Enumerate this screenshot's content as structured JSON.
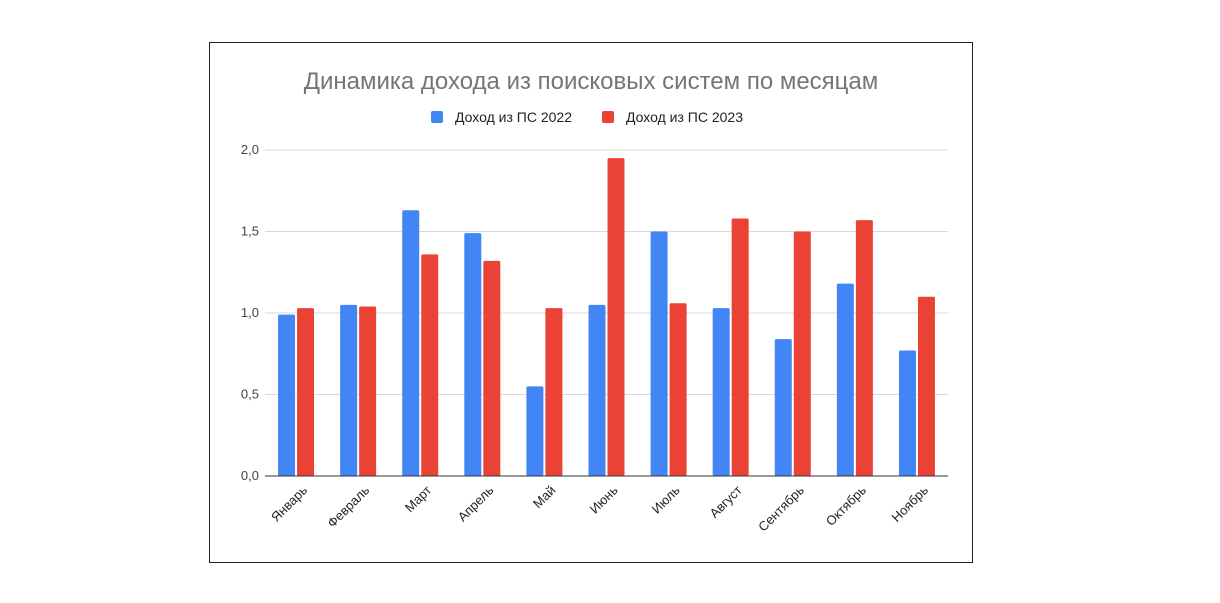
{
  "chart_data": {
    "type": "bar",
    "title": "Динамика дохода из поисковых систем по месяцам",
    "categories": [
      "Январь",
      "Февраль",
      "Март",
      "Апрель",
      "Май",
      "Июнь",
      "Июль",
      "Август",
      "Сентябрь",
      "Октябрь",
      "Ноябрь"
    ],
    "series": [
      {
        "name": "Доход из ПС 2022",
        "color": "#4285f4",
        "values": [
          0.99,
          1.05,
          1.63,
          1.49,
          0.55,
          1.05,
          1.5,
          1.03,
          0.84,
          1.18,
          0.77
        ]
      },
      {
        "name": "Доход из ПС 2023",
        "color": "#ea4335",
        "values": [
          1.03,
          1.04,
          1.36,
          1.32,
          1.03,
          1.95,
          1.06,
          1.58,
          1.5,
          1.57,
          1.1
        ]
      }
    ],
    "ylim": [
      0,
      2.0
    ],
    "yticks": [
      "0,0",
      "0,5",
      "1,0",
      "1,5",
      "2,0"
    ],
    "ytick_values": [
      0,
      0.5,
      1.0,
      1.5,
      2.0
    ],
    "xlabel": "",
    "ylabel": "",
    "grid": true,
    "legend_position": "top"
  }
}
